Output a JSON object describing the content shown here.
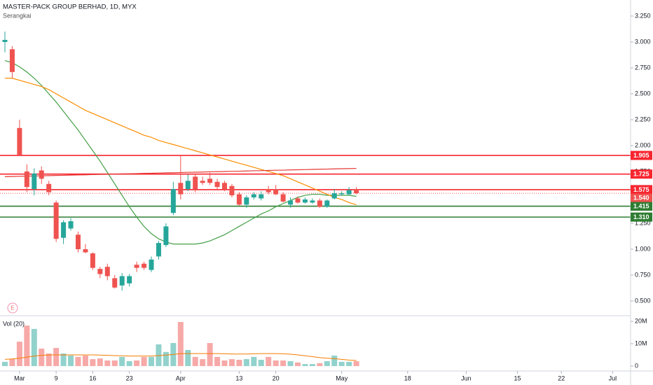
{
  "chart_data": {
    "type": "candlestick",
    "title": "MASTER-PACK GROUP BERHAD, 1D, MYX",
    "subtitle": "Serangkai",
    "earnings_marker": "E",
    "categories": [
      null,
      null,
      "Mar",
      null,
      null,
      null,
      null,
      "9",
      null,
      null,
      null,
      null,
      "16",
      null,
      null,
      null,
      null,
      "23",
      null,
      null,
      null,
      null,
      null,
      null,
      "Apr",
      null,
      null,
      null,
      null,
      null,
      null,
      null,
      "13",
      null,
      null,
      null,
      null,
      "20",
      null,
      null,
      null,
      null,
      null,
      null,
      null,
      null,
      "May",
      null,
      null,
      null,
      null,
      null,
      null,
      null,
      null,
      "18",
      null,
      null,
      null,
      null,
      null,
      null,
      null,
      "Jun",
      null,
      null,
      null,
      null,
      null,
      null,
      "15",
      null,
      null,
      null,
      null,
      null,
      "22",
      null,
      null,
      null,
      null,
      null,
      null,
      "Jul",
      null,
      null
    ],
    "open": [
      3.0,
      2.93,
      2.17,
      1.75,
      1.58,
      1.76,
      1.63,
      1.45,
      1.11,
      1.2,
      1.14,
      1.0,
      0.96,
      0.81,
      0.83,
      0.72,
      0.65,
      0.67,
      0.85,
      0.86,
      0.8,
      0.93,
      1.04,
      1.35,
      1.64,
      1.58,
      1.7,
      1.66,
      1.68,
      1.65,
      1.64,
      1.61,
      1.53,
      1.43,
      1.5,
      1.49,
      1.58,
      1.58,
      1.53,
      1.43,
      1.49,
      1.45,
      1.45,
      1.47,
      1.41,
      1.49,
      1.53,
      1.53,
      1.58,
      null,
      null,
      null,
      null,
      null,
      null,
      null,
      null,
      null,
      null,
      null,
      null,
      null,
      null,
      null,
      null,
      null,
      null,
      null,
      null,
      null,
      null,
      null,
      null,
      null,
      null,
      null,
      null,
      null,
      null,
      null,
      null,
      null,
      null,
      null,
      null,
      null
    ],
    "high": [
      3.1,
      2.96,
      2.25,
      1.82,
      1.78,
      1.8,
      1.66,
      1.47,
      1.28,
      1.3,
      1.17,
      1.05,
      0.97,
      0.83,
      0.86,
      0.75,
      0.77,
      0.76,
      0.88,
      0.88,
      0.93,
      1.08,
      1.25,
      1.65,
      1.9,
      1.72,
      1.73,
      1.7,
      1.74,
      1.68,
      1.66,
      1.63,
      1.55,
      1.52,
      1.55,
      1.56,
      1.61,
      1.62,
      1.55,
      1.5,
      1.51,
      1.5,
      1.49,
      1.49,
      1.48,
      1.58,
      1.56,
      1.6,
      1.6,
      null,
      null,
      null,
      null,
      null,
      null,
      null,
      null,
      null,
      null,
      null,
      null,
      null,
      null,
      null,
      null,
      null,
      null,
      null,
      null,
      null,
      null,
      null,
      null,
      null,
      null,
      null,
      null,
      null,
      null,
      null,
      null,
      null,
      null,
      null,
      null,
      null
    ],
    "low": [
      2.9,
      2.65,
      1.9,
      1.55,
      1.52,
      1.63,
      1.52,
      1.07,
      1.05,
      1.18,
      0.97,
      0.96,
      0.8,
      0.72,
      0.7,
      0.62,
      0.6,
      0.64,
      0.78,
      0.8,
      0.78,
      0.9,
      1.02,
      1.33,
      1.48,
      1.56,
      1.55,
      1.62,
      1.62,
      1.58,
      1.56,
      1.5,
      1.42,
      1.4,
      1.48,
      1.47,
      1.53,
      1.52,
      1.45,
      1.4,
      1.44,
      1.44,
      1.44,
      1.4,
      1.4,
      1.48,
      1.52,
      1.52,
      1.53,
      null,
      null,
      null,
      null,
      null,
      null,
      null,
      null,
      null,
      null,
      null,
      null,
      null,
      null,
      null,
      null,
      null,
      null,
      null,
      null,
      null,
      null,
      null,
      null,
      null,
      null,
      null,
      null,
      null,
      null,
      null,
      null,
      null,
      null,
      null,
      null,
      null
    ],
    "close": [
      3.02,
      2.71,
      1.91,
      1.6,
      1.73,
      1.68,
      1.55,
      1.1,
      1.26,
      1.27,
      1.0,
      0.97,
      0.82,
      0.76,
      0.74,
      0.63,
      0.74,
      0.74,
      0.82,
      0.82,
      0.9,
      1.06,
      1.22,
      1.58,
      1.53,
      1.66,
      1.58,
      1.64,
      1.64,
      1.6,
      1.58,
      1.52,
      1.43,
      1.5,
      1.53,
      1.53,
      1.55,
      1.53,
      1.46,
      1.47,
      1.45,
      1.48,
      1.47,
      1.41,
      1.47,
      1.54,
      1.54,
      1.57,
      1.54,
      null,
      null,
      null,
      null,
      null,
      null,
      null,
      null,
      null,
      null,
      null,
      null,
      null,
      null,
      null,
      null,
      null,
      null,
      null,
      null,
      null,
      null,
      null,
      null,
      null,
      null,
      null,
      null,
      null,
      null,
      null,
      null,
      null,
      null,
      null,
      null,
      null
    ],
    "up_color": "#26a69a",
    "down_color": "#ef5350",
    "ylim": [
      0.365,
      3.405
    ],
    "yticks": [
      {
        "value": 3.25,
        "label": "3.250"
      },
      {
        "value": 3,
        "label": "3.000"
      },
      {
        "value": 2.75,
        "label": "2.750"
      },
      {
        "value": 2.5,
        "label": "2.500"
      },
      {
        "value": 2.25,
        "label": "2.250"
      },
      {
        "value": 2,
        "label": "2.000"
      },
      {
        "value": 1.75,
        "label": "1.750"
      },
      {
        "value": 1.5,
        "label": "1.500"
      },
      {
        "value": 1.25,
        "label": "1.250"
      },
      {
        "value": 1,
        "label": "1.000"
      },
      {
        "value": 0.75,
        "label": "0.750"
      },
      {
        "value": 0.5,
        "label": "0.500"
      }
    ],
    "overlays": [
      {
        "color": "#43a047",
        "values": [
          2.82,
          2.8,
          2.76,
          2.71,
          2.65,
          2.58,
          2.5,
          2.42,
          2.33,
          2.24,
          2.15,
          2.05,
          1.95,
          1.85,
          1.74,
          1.63,
          1.52,
          1.41,
          1.31,
          1.22,
          1.15,
          1.1,
          1.07,
          1.05,
          1.05,
          1.05,
          1.05,
          1.06,
          1.08,
          1.11,
          1.14,
          1.18,
          1.22,
          1.26,
          1.3,
          1.34,
          1.37,
          1.41,
          1.44,
          1.47,
          1.5,
          1.52,
          1.53,
          1.53,
          1.52,
          1.52,
          1.52,
          1.52,
          1.51,
          null,
          null,
          null,
          null,
          null,
          null,
          null,
          null,
          null,
          null,
          null,
          null,
          null,
          null,
          null,
          null,
          null,
          null,
          null,
          null,
          null,
          null,
          null,
          null,
          null,
          null,
          null,
          null,
          null,
          null,
          null,
          null,
          null,
          null,
          null,
          null,
          null
        ]
      },
      {
        "color": "#fb8c00",
        "values": [
          2.65,
          2.65,
          2.63,
          2.61,
          2.59,
          2.57,
          2.54,
          2.5,
          2.46,
          2.42,
          2.38,
          2.34,
          2.31,
          2.28,
          2.25,
          2.22,
          2.19,
          2.16,
          2.13,
          2.1,
          2.08,
          2.05,
          2.03,
          2.01,
          1.99,
          1.97,
          1.95,
          1.93,
          1.91,
          1.89,
          1.87,
          1.85,
          1.83,
          1.81,
          1.79,
          1.77,
          1.75,
          1.73,
          1.71,
          1.68,
          1.65,
          1.62,
          1.59,
          1.56,
          1.53,
          1.5,
          1.48,
          1.45,
          1.43,
          null,
          null,
          null,
          null,
          null,
          null,
          null,
          null,
          null,
          null,
          null,
          null,
          null,
          null,
          null,
          null,
          null,
          null,
          null,
          null,
          null,
          null,
          null,
          null,
          null,
          null,
          null,
          null,
          null,
          null,
          null,
          null,
          null,
          null,
          null,
          null,
          null
        ]
      },
      {
        "color": "#e53935",
        "values": [
          1.7,
          1.702,
          1.703,
          1.705,
          1.707,
          1.708,
          1.71,
          1.712,
          1.713,
          1.715,
          1.717,
          1.718,
          1.72,
          1.722,
          1.723,
          1.725,
          1.727,
          1.728,
          1.73,
          1.732,
          1.733,
          1.735,
          1.737,
          1.738,
          1.74,
          1.742,
          1.743,
          1.745,
          1.747,
          1.748,
          1.75,
          1.752,
          1.753,
          1.755,
          1.757,
          1.758,
          1.76,
          1.762,
          1.763,
          1.765,
          1.767,
          1.768,
          1.77,
          1.772,
          1.773,
          1.775,
          1.777,
          1.778,
          1.78,
          null,
          null,
          null,
          null,
          null,
          null,
          null,
          null,
          null,
          null,
          null,
          null,
          null,
          null,
          null,
          null,
          null,
          null,
          null,
          null,
          null,
          null,
          null,
          null,
          null,
          null,
          null,
          null,
          null,
          null,
          null,
          null,
          null,
          null,
          null,
          null,
          null
        ]
      }
    ],
    "levels": [
      {
        "value": 1.905,
        "color": "#f7252f"
      },
      {
        "value": 1.725,
        "color": "#f7252f"
      },
      {
        "value": 1.575,
        "color": "#f7252f"
      },
      {
        "value": 1.415,
        "color": "#2e7d32"
      },
      {
        "value": {
          "value": 1.31,
          "label": "1.310"
        },
        "color": "#2e7d32"
      }
    ],
    "last_price": {
      "value": 1.54,
      "label": "1.540",
      "color": "#ef5350"
    },
    "volume": {
      "title": "Vol (20)",
      "values": [
        1.9,
        3.1,
        10.9,
        18.1,
        16.6,
        7.8,
        5.6,
        8.1,
        5.6,
        4.7,
        4.1,
        4.7,
        3.1,
        3.4,
        2.5,
        2.5,
        4.1,
        2.2,
        2.5,
        4.1,
        4.1,
        9.7,
        6.3,
        10.3,
        19.7,
        7.2,
        4.1,
        3.1,
        10.3,
        4.1,
        2.5,
        3.1,
        2.8,
        3.1,
        4.1,
        2.8,
        4.1,
        2.5,
        2.5,
        2.2,
        1.6,
        0.9,
        0.9,
        1.3,
        2.2,
        4.7,
        1.9,
        1.9,
        2.2,
        null,
        null,
        null,
        null,
        null,
        null,
        null,
        null,
        null,
        null,
        null,
        null,
        null,
        null,
        null,
        null,
        null,
        null,
        null,
        null,
        null,
        null,
        null,
        null,
        null,
        null,
        null,
        null,
        null,
        null,
        null,
        null,
        null,
        null,
        null,
        null,
        null
      ],
      "ylim": [
        -2.2,
        22.2
      ],
      "yticks": [
        {
          "value": 20,
          "label": "20M"
        },
        {
          "value": 10,
          "label": "10M"
        },
        0
      ],
      "ma": {
        "color": "#f57c00",
        "values": [
          3.0,
          3.2,
          3.5,
          4.0,
          4.5,
          4.8,
          5.0,
          5.0,
          5.0,
          5.0,
          5.0,
          5.0,
          5.0,
          4.9,
          4.8,
          4.7,
          4.6,
          4.5,
          4.5,
          4.5,
          4.5,
          4.7,
          4.9,
          5.2,
          5.6,
          5.6,
          5.6,
          5.6,
          5.6,
          5.6,
          5.5,
          5.4,
          5.4,
          5.4,
          5.5,
          5.6,
          5.6,
          5.6,
          5.5,
          5.3,
          5.0,
          4.6,
          4.2,
          3.8,
          3.5,
          3.3,
          3.0,
          2.7,
          2.5,
          null,
          null,
          null,
          null,
          null,
          null,
          null,
          null,
          null,
          null,
          null,
          null,
          null,
          null,
          null,
          null,
          null,
          null,
          null,
          null,
          null,
          null,
          null,
          null,
          null,
          null,
          null,
          null,
          null,
          null,
          null,
          null,
          null,
          null,
          null,
          null,
          null
        ]
      }
    }
  }
}
